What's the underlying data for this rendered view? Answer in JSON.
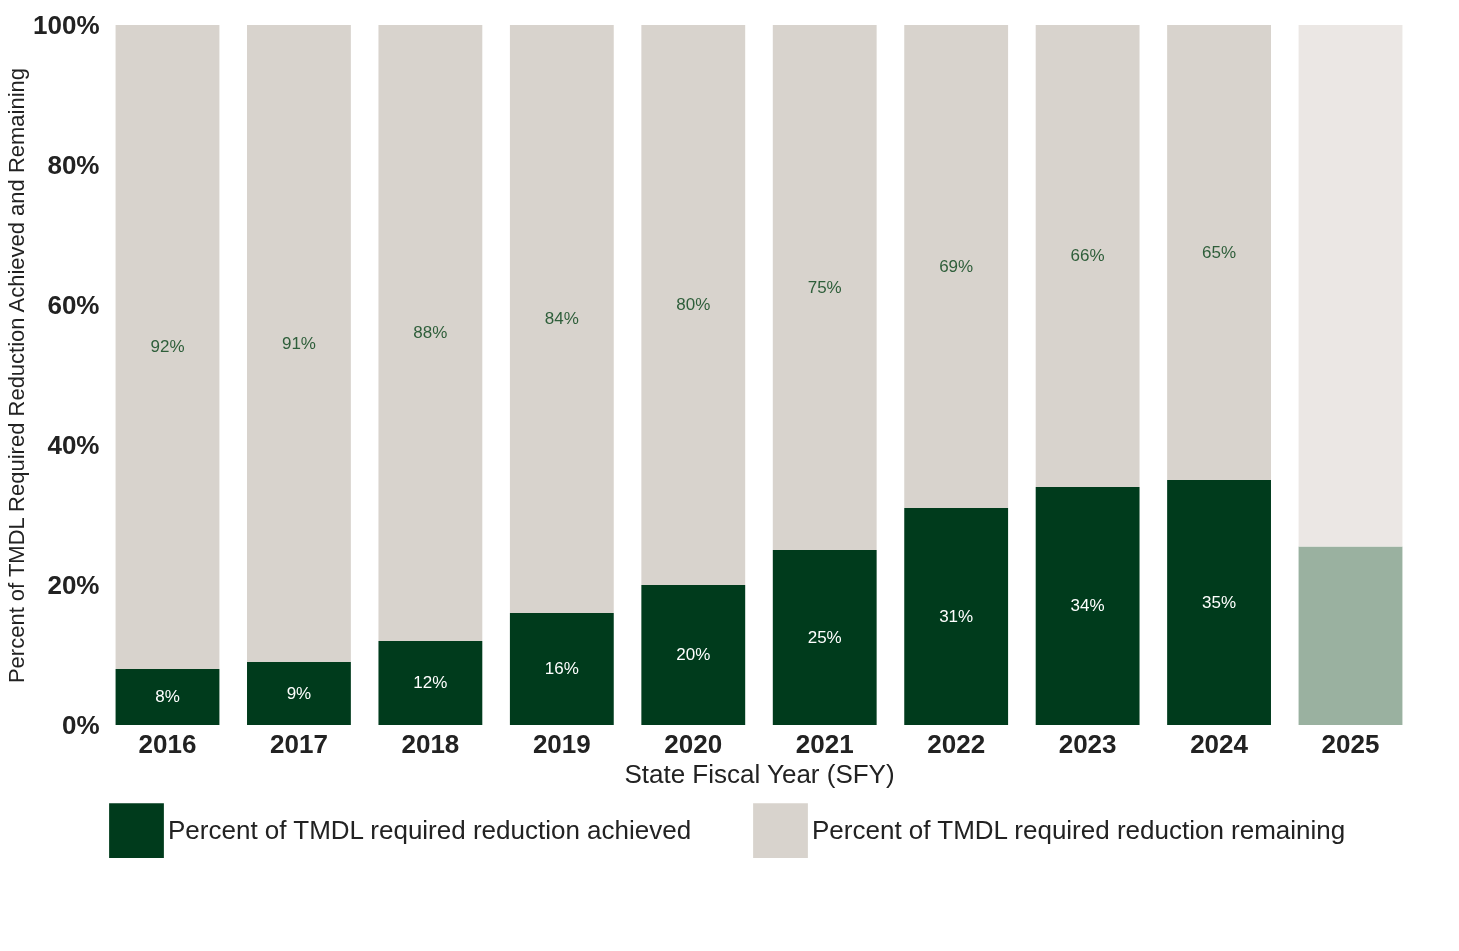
{
  "chart_data": {
    "type": "bar",
    "stacked": true,
    "xlabel": "State Fiscal Year (SFY)",
    "ylabel": "Percent of TMDL Required Reduction Achieved and Remaining",
    "categories": [
      "2016",
      "2017",
      "2018",
      "2019",
      "2020",
      "2021",
      "2022",
      "2023",
      "2024",
      "2025"
    ],
    "series": [
      {
        "name": "Percent of TMDL required reduction achieved",
        "color": "#003b1c",
        "colors": [
          "#003b1c",
          "#003b1c",
          "#003b1c",
          "#003b1c",
          "#003b1c",
          "#003b1c",
          "#003b1c",
          "#003b1c",
          "#003b1c",
          "#9ab1a0"
        ],
        "values": [
          8,
          9,
          12,
          16,
          20,
          25,
          31,
          34,
          35,
          25.5
        ],
        "value_labels": [
          "8%",
          "9%",
          "12%",
          "16%",
          "20%",
          "25%",
          "31%",
          "34%",
          "35%",
          null
        ]
      },
      {
        "name": "Percent of TMDL required reduction remaining",
        "color": "#d8d3cd",
        "colors": [
          "#d8d3cd",
          "#d8d3cd",
          "#d8d3cd",
          "#d8d3cd",
          "#d8d3cd",
          "#d8d3cd",
          "#d8d3cd",
          "#d8d3cd",
          "#d8d3cd",
          "#ebe7e4"
        ],
        "values": [
          92,
          91,
          88,
          84,
          80,
          75,
          69,
          66,
          65,
          74.5
        ],
        "value_labels": [
          "92%",
          "91%",
          "88%",
          "84%",
          "80%",
          "75%",
          "69%",
          "66%",
          "65%",
          null
        ]
      }
    ],
    "ylim": [
      0,
      100
    ],
    "yticks": [
      {
        "value": 0,
        "label": "0%"
      },
      {
        "value": 20,
        "label": "20%"
      },
      {
        "value": 40,
        "label": "40%"
      },
      {
        "value": 60,
        "label": "60%"
      },
      {
        "value": 80,
        "label": "80%"
      },
      {
        "value": 100,
        "label": "100%"
      }
    ],
    "grid": false,
    "legend": "bottom"
  }
}
